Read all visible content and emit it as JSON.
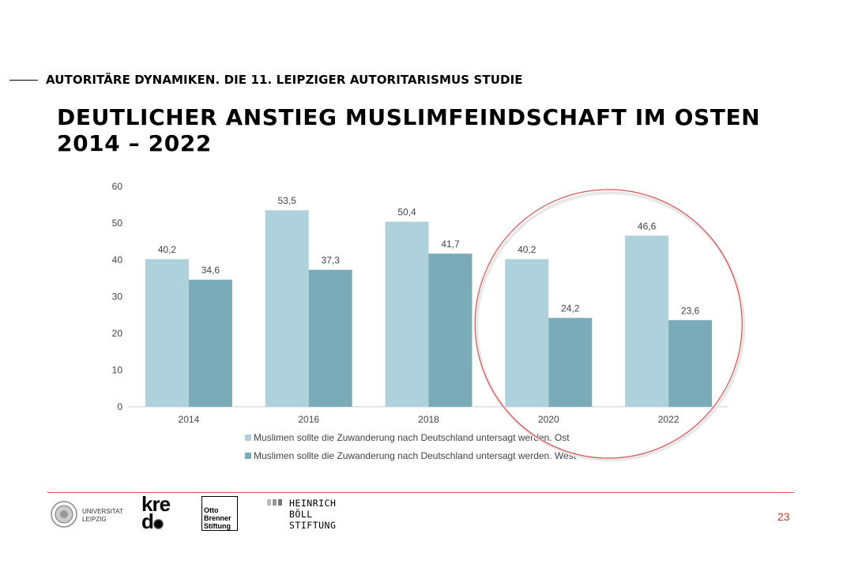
{
  "slide": {
    "kicker": "AUTORITÄRE DYNAMIKEN. DIE 11. LEIPZIGER AUTORITARISMUS STUDIE",
    "title_line1": "DEUTLICHER ANSTIEG MUSLIMFEINDSCHAFT IM OSTEN",
    "title_line2": "2014 – 2022",
    "page_number": "23"
  },
  "logos": {
    "university": [
      "UNIVERSITAT",
      "LEIPZIG"
    ],
    "kredo": "kre\nd",
    "otto_brenner": [
      "Otto",
      "Brenner",
      "Stiftung"
    ],
    "boell": [
      "HEINRICH",
      "BÖLL",
      "STIFTUNG"
    ]
  },
  "chart_data": {
    "type": "bar",
    "categories": [
      "2014",
      "2016",
      "2018",
      "2020",
      "2022"
    ],
    "series": [
      {
        "name": "Muslimen sollte die Zuwanderung nach Deutschland untersagt werden. Ost",
        "values": [
          40.2,
          53.5,
          50.4,
          40.2,
          46.6
        ],
        "labels": [
          "40,2",
          "53,5",
          "50,4",
          "40,2",
          "46,6"
        ],
        "color": "#aed1dc"
      },
      {
        "name": "Muslimen sollte die Zuwanderung nach Deutschland untersagt werden. West",
        "values": [
          34.6,
          37.3,
          41.7,
          24.2,
          23.6
        ],
        "labels": [
          "34,6",
          "37,3",
          "41,7",
          "24,2",
          "23,6"
        ],
        "color": "#7aabb8"
      }
    ],
    "ylim": [
      0,
      60
    ],
    "yticks": [
      0,
      10,
      20,
      30,
      40,
      50,
      60
    ],
    "grid": false,
    "legend_position": "bottom",
    "highlight": {
      "shape": "circle",
      "categories": [
        "2020",
        "2022"
      ],
      "color": "#d9534f"
    }
  }
}
